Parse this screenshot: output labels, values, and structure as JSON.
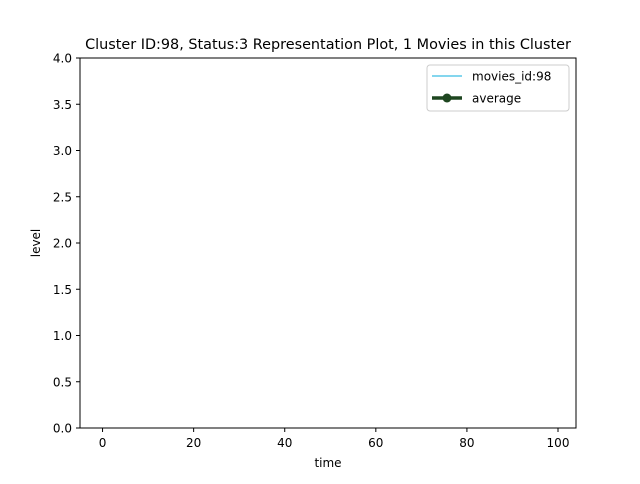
{
  "chart_data": {
    "type": "line",
    "title": "Cluster ID:98, Status:3 Representation Plot, 1 Movies in this Cluster",
    "xlabel": "time",
    "ylabel": "level",
    "xlim": [
      -4.95,
      103.95
    ],
    "ylim": [
      0,
      4
    ],
    "xticks": [
      0,
      20,
      40,
      60,
      80,
      100
    ],
    "yticks": [
      0.0,
      0.5,
      1.0,
      1.5,
      2.0,
      2.5,
      3.0,
      3.5,
      4.0
    ],
    "xtick_labels": [
      "0",
      "20",
      "40",
      "60",
      "80",
      "100"
    ],
    "ytick_labels": [
      "0.0",
      "0.5",
      "1.0",
      "1.5",
      "2.0",
      "2.5",
      "3.0",
      "3.5",
      "4.0"
    ],
    "grid": false,
    "legend_position": "top-right",
    "series": [
      {
        "name": "movies_id:98",
        "color": "#5bc8e8",
        "style": "line",
        "x": [],
        "y": []
      },
      {
        "name": "average",
        "color": "#1e4620",
        "style": "line-marker",
        "x": [],
        "y": []
      }
    ]
  }
}
